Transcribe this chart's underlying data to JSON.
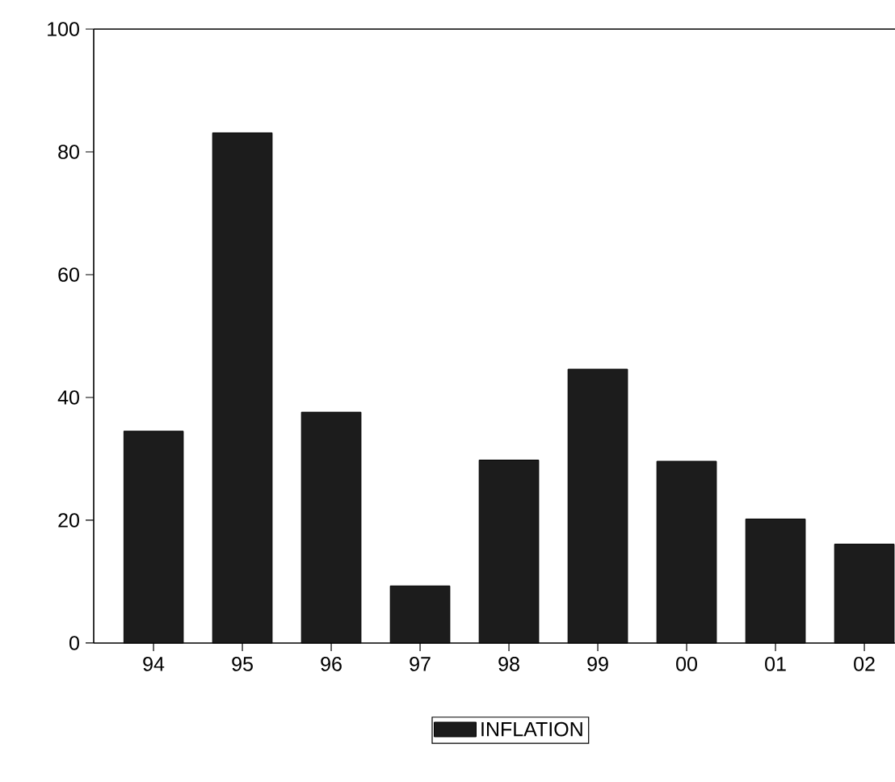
{
  "chart_data": {
    "type": "bar",
    "categories": [
      "94",
      "95",
      "96",
      "97",
      "98",
      "99",
      "00",
      "01",
      "02"
    ],
    "series": [
      {
        "name": "INFLATION",
        "color": "#1c1c1c",
        "values": [
          34.5,
          83.1,
          37.6,
          9.3,
          29.8,
          44.6,
          29.6,
          20.2,
          16.1
        ]
      }
    ],
    "ylim": [
      0,
      100
    ],
    "yticks": [
      0,
      20,
      40,
      60,
      80,
      100
    ],
    "legend": "bottom",
    "grid": false
  }
}
